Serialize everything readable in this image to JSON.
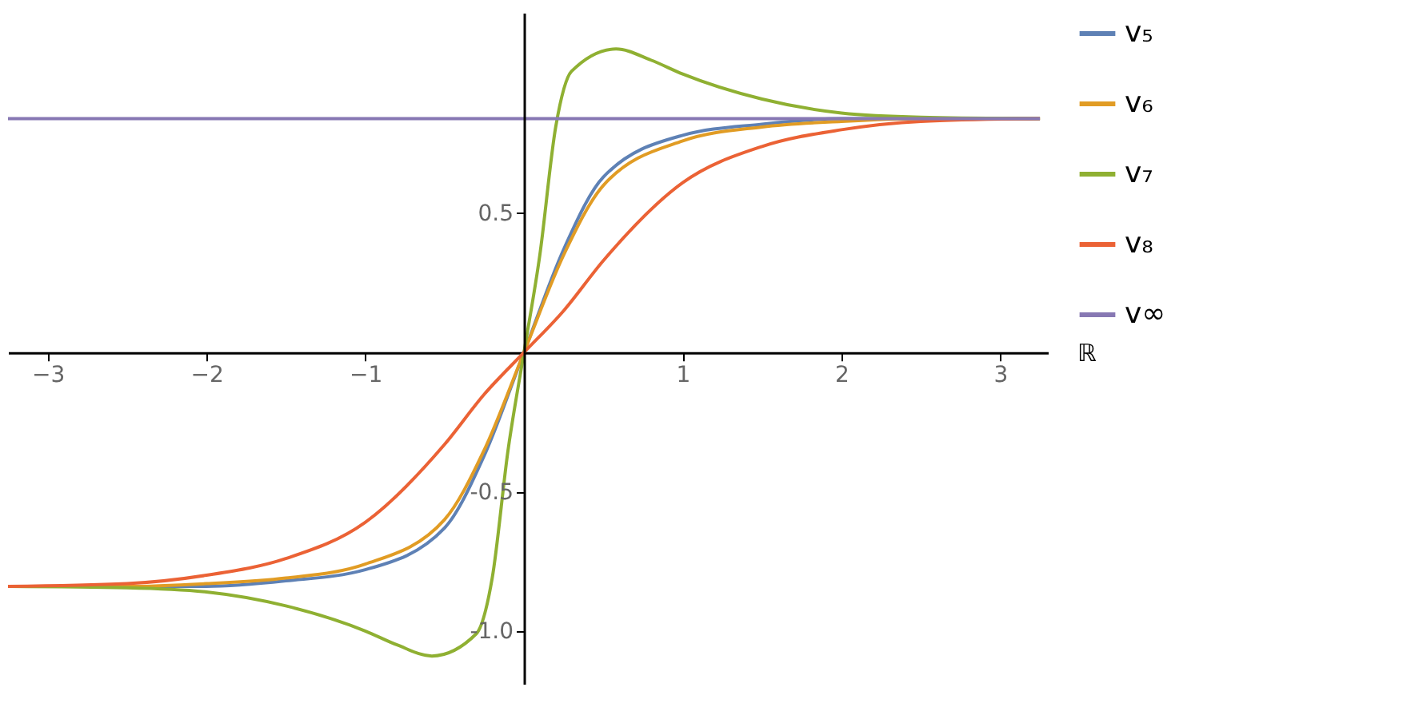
{
  "chart_data": {
    "type": "line",
    "xlabel": "ℝ",
    "xlim": [
      -3.25,
      3.3
    ],
    "ylim": [
      -1.19,
      1.22
    ],
    "xticks": [
      -3,
      -2,
      -1,
      1,
      2,
      3
    ],
    "yticks": [
      {
        "value": -1.0,
        "label": "-1.0"
      },
      {
        "value": -0.5,
        "label": "-0.5"
      },
      {
        "value": 0.5,
        "label": "0.5"
      }
    ],
    "grid": false,
    "legend": "right",
    "marker": "none",
    "line_style": "solid",
    "series": [
      {
        "name": "v₅",
        "color": "#5e81b5",
        "x": [
          -3.25,
          -2.5,
          -2,
          -1.5,
          -1,
          -0.5,
          -0.25,
          0,
          0.25,
          0.5,
          1,
          1.5,
          2,
          2.5,
          3.25
        ],
        "values": [
          -0.84,
          -0.84,
          -0.84,
          -0.82,
          -0.78,
          -0.63,
          -0.37,
          0,
          0.37,
          0.63,
          0.78,
          0.82,
          0.84,
          0.84,
          0.84
        ]
      },
      {
        "name": "v₆",
        "color": "#e19c24",
        "x": [
          -3.25,
          -2.5,
          -2,
          -1.5,
          -1,
          -0.5,
          -0.25,
          0,
          0.25,
          0.5,
          1,
          1.5,
          2,
          2.5,
          3.25
        ],
        "values": [
          -0.84,
          -0.84,
          -0.83,
          -0.81,
          -0.76,
          -0.6,
          -0.35,
          0,
          0.35,
          0.6,
          0.76,
          0.81,
          0.83,
          0.84,
          0.84
        ]
      },
      {
        "name": "v₇",
        "color": "#8fb032",
        "x": [
          -3.25,
          -2.5,
          -2,
          -1.5,
          -1,
          -0.8,
          -0.58,
          -0.3,
          -0.2,
          -0.1,
          0,
          0.1,
          0.2,
          0.3,
          0.58,
          0.8,
          1,
          1.5,
          2,
          2.5,
          3.25
        ],
        "values": [
          -0.84,
          -0.845,
          -0.86,
          -0.91,
          -1.0,
          -1.05,
          -1.09,
          -1.01,
          -0.81,
          -0.35,
          0,
          0.35,
          0.81,
          1.01,
          1.09,
          1.05,
          1.0,
          0.91,
          0.86,
          0.845,
          0.84
        ]
      },
      {
        "name": "v₈",
        "color": "#eb6235",
        "x": [
          -3.25,
          -2.5,
          -2,
          -1.5,
          -1,
          -0.5,
          -0.25,
          0,
          0.25,
          0.5,
          1,
          1.5,
          2,
          2.5,
          3.25
        ],
        "values": [
          -0.84,
          -0.83,
          -0.8,
          -0.74,
          -0.61,
          -0.33,
          -0.15,
          0,
          0.15,
          0.33,
          0.61,
          0.74,
          0.8,
          0.83,
          0.84
        ]
      },
      {
        "name": "v∞",
        "color": "#8778b3",
        "x": [
          -3.25,
          3.25
        ],
        "values": [
          0.84,
          0.84
        ]
      }
    ]
  }
}
